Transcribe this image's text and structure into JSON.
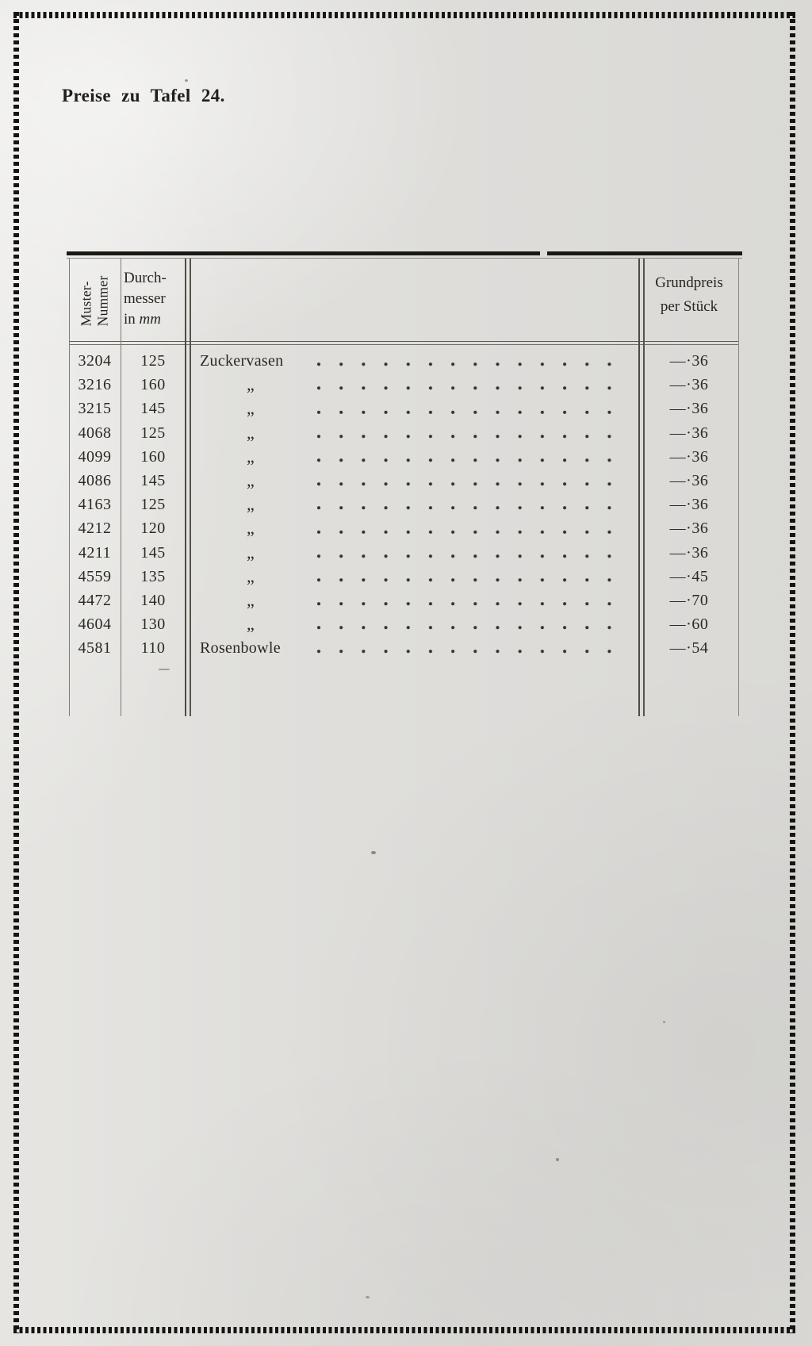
{
  "page": {
    "title": "Preise zu Tafel 24."
  },
  "table": {
    "header": {
      "col1_line1": "Muster-",
      "col1_line2": "Nummer",
      "col2_line1": "Durch-",
      "col2_line2": "messer",
      "col2_line3_prefix": "in ",
      "col2_line3_unit": "mm",
      "col4_line1": "Grundpreis",
      "col4_line2": "per Stück"
    },
    "rows": [
      {
        "nr": "3204",
        "dia": "125",
        "name": "Zuckervasen",
        "price": "—·36"
      },
      {
        "nr": "3216",
        "dia": "160",
        "name": "„",
        "price": "—·36"
      },
      {
        "nr": "3215",
        "dia": "145",
        "name": "„",
        "price": "—·36"
      },
      {
        "nr": "4068",
        "dia": "125",
        "name": "„",
        "price": "—·36"
      },
      {
        "nr": "4099",
        "dia": "160",
        "name": "„",
        "price": "—·36"
      },
      {
        "nr": "4086",
        "dia": "145",
        "name": "„",
        "price": "—·36"
      },
      {
        "nr": "4163",
        "dia": "125",
        "name": "„",
        "price": "—·36"
      },
      {
        "nr": "4212",
        "dia": "120",
        "name": "„",
        "price": "—·36"
      },
      {
        "nr": "4211",
        "dia": "145",
        "name": "„",
        "price": "—·36"
      },
      {
        "nr": "4559",
        "dia": "135",
        "name": "„",
        "price": "—·45"
      },
      {
        "nr": "4472",
        "dia": "140",
        "name": "„",
        "price": "—·70"
      },
      {
        "nr": "4604",
        "dia": "130",
        "name": "„",
        "price": "—·60"
      },
      {
        "nr": "4581",
        "dia": "110",
        "name": "Rosenbowle",
        "price": "—·54"
      }
    ],
    "ditto_mark": "„"
  },
  "colors": {
    "paper": "#e0dfdc",
    "ink": "#26251f",
    "thick_rule": "#191813",
    "thin_rule": "#7d7c75"
  }
}
